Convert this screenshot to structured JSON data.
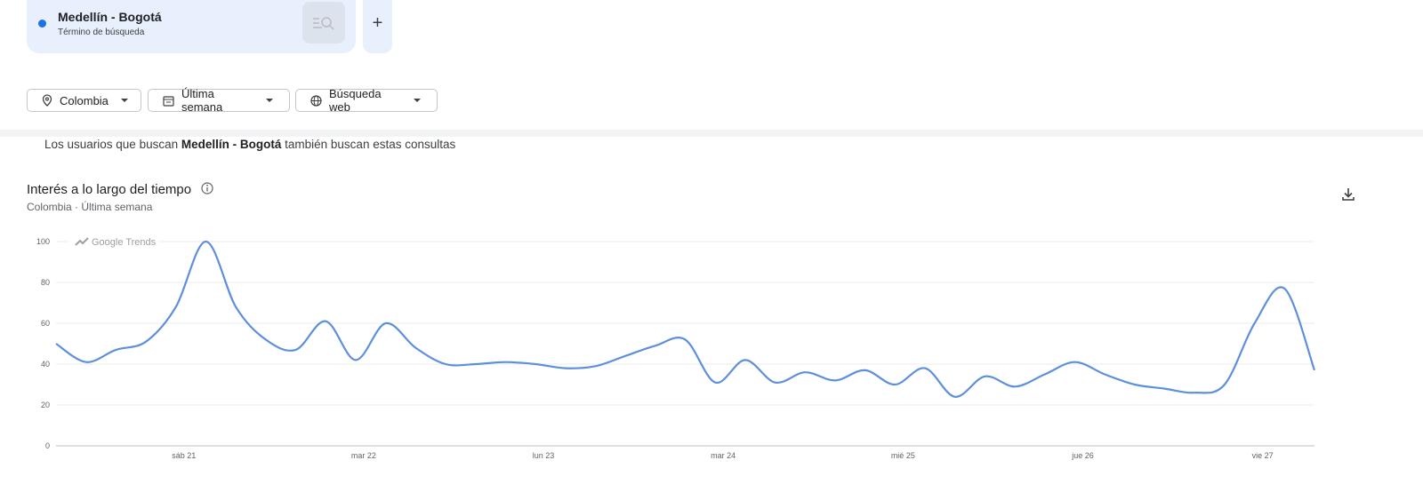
{
  "search_term": {
    "name": "Medellín - Bogotá",
    "kind": "Término de búsqueda",
    "add": "+"
  },
  "filters": [
    "Colombia",
    "Última semana",
    "Búsqueda web"
  ],
  "related_note": {
    "before": "Los usuarios que buscan",
    "term": "Medellín - Bogotá",
    "after": "también buscan estas consultas"
  },
  "chart_data": {
    "type": "line",
    "title": "Interés a lo largo del tiempo",
    "subtitle": "Colombia · Última semana",
    "watermark": "Google Trends",
    "categories": [
      null,
      null,
      null,
      null,
      "sáb 21",
      null,
      null,
      null,
      null,
      null,
      "mar 22",
      null,
      null,
      null,
      null,
      null,
      "lun 23",
      null,
      null,
      null,
      null,
      null,
      "mar 24",
      null,
      null,
      null,
      null,
      null,
      "mié 25",
      null,
      null,
      null,
      null,
      null,
      "jue 26",
      null,
      null,
      null,
      null,
      null,
      "vie 27",
      null,
      null
    ],
    "values": [
      50,
      41,
      47,
      51,
      68,
      100,
      68,
      52,
      47,
      61,
      42,
      60,
      48,
      40,
      40,
      41,
      40,
      38,
      39,
      44,
      49,
      52,
      31,
      42,
      31,
      36,
      32,
      37,
      30,
      38,
      24,
      34,
      29,
      35,
      41,
      35,
      30,
      28,
      26,
      30,
      60,
      77,
      37
    ],
    "color": "#5e8fdb",
    "ylim": [
      0,
      100
    ],
    "yticks": [
      0,
      20,
      40,
      60,
      80,
      100
    ],
    "grid": true
  }
}
